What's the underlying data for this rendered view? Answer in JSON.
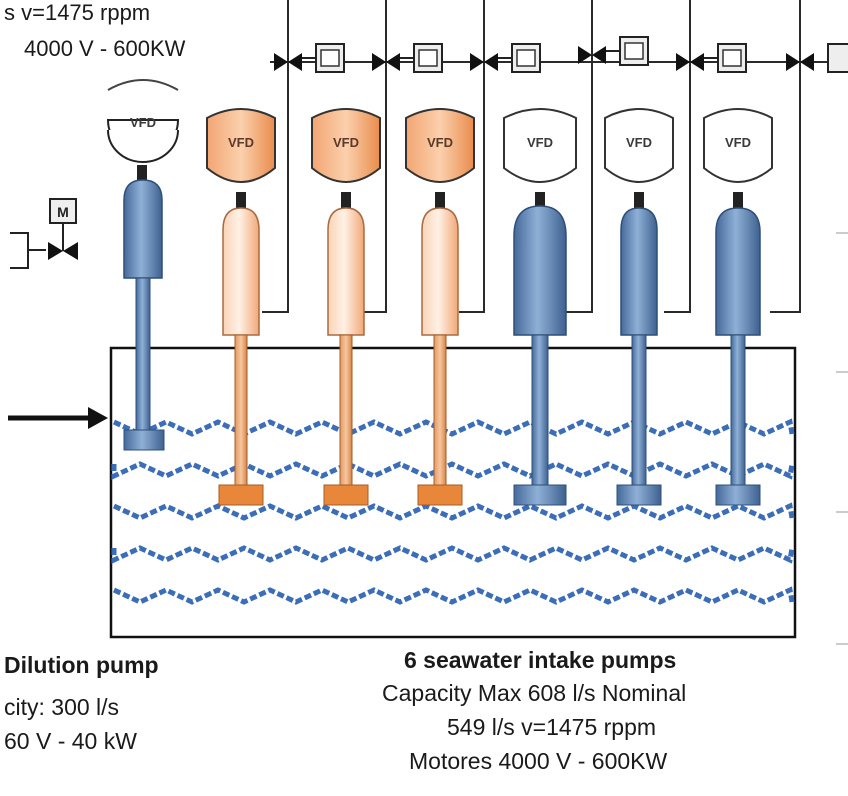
{
  "header": {
    "line1": "s v=1475 rppm",
    "line2": "4000 V - 600KW"
  },
  "symbols": {
    "vfd": "VFD",
    "motor_valve": "M"
  },
  "dilution": {
    "title": "Dilution pump",
    "capacity": "city: 300 l/s",
    "power": "60 V -  40 kW"
  },
  "seawater": {
    "title": "6 seawater intake pumps",
    "capacity": "Capacity Max 608 l/s Nominal",
    "speed": "549 l/s v=1475 rppm",
    "motors": "Motores  4000 V - 600KW"
  },
  "colors": {
    "orange_pump": "#f4b48a",
    "orange_impeller": "#e8873a",
    "blue_pump": "#5b85b5",
    "water_wave": "#3c6db8",
    "line": "#1a1a1a"
  }
}
